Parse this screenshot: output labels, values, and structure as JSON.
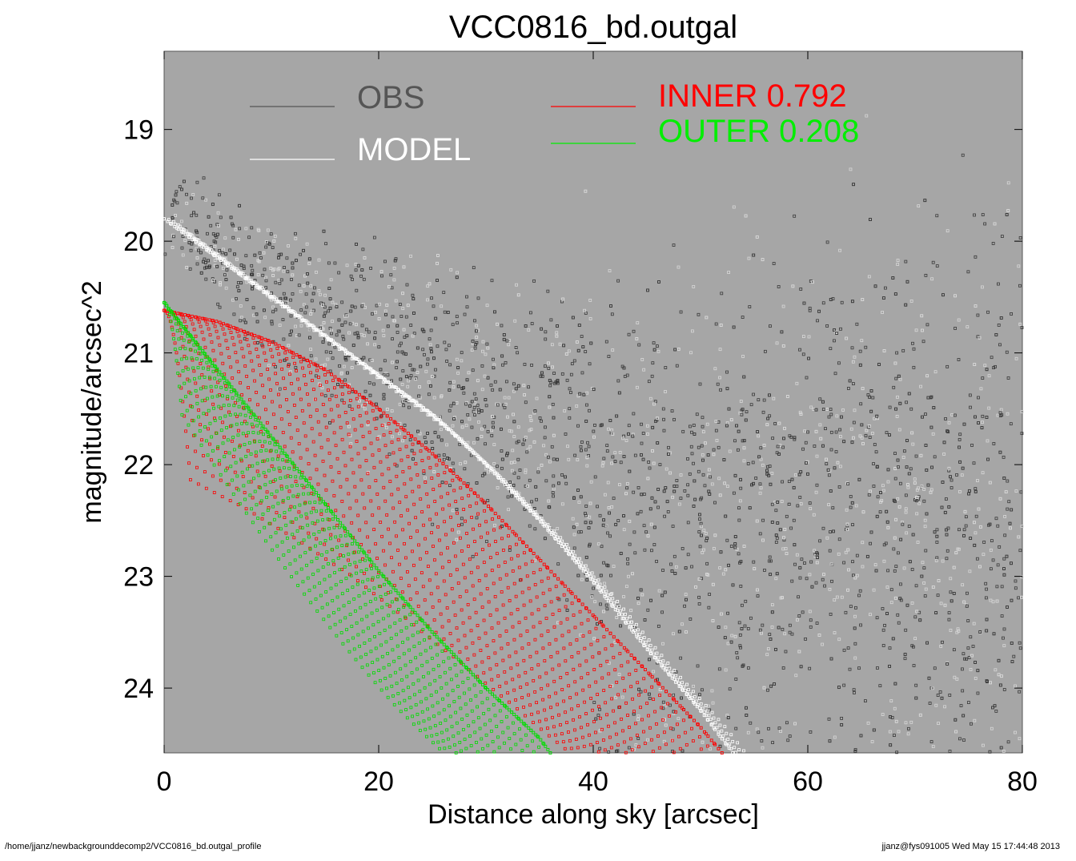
{
  "chart_data": {
    "type": "scatter",
    "title": "VCC0816_bd.outgal",
    "xlabel": "Distance along sky [arcsec]",
    "ylabel": "magnitude/arcsec^2",
    "xlim": [
      0,
      80
    ],
    "ylim": [
      24.58,
      18.3
    ],
    "y_inverted": true,
    "x_ticks": [
      0,
      20,
      40,
      60,
      80
    ],
    "y_ticks": [
      19,
      20,
      21,
      22,
      23,
      24
    ],
    "background": "#a6a6a6",
    "grid": false,
    "legend": [
      {
        "name": "OBS",
        "value": "",
        "color": "#555555",
        "position": "top-left"
      },
      {
        "name": "MODEL",
        "value": "",
        "color": "#ffffff",
        "position": "top-left"
      },
      {
        "name": "INNER",
        "value": "0.792",
        "color": "#ff0000",
        "position": "top-center"
      },
      {
        "name": "OUTER",
        "value": "0.208",
        "color": "#00ee00",
        "position": "top-center"
      }
    ],
    "series": [
      {
        "name": "OBS",
        "color": "#3a3a3a",
        "note": "scattered observed pixels, ~19.5-20 mag near center falling to ~21.5-22 background level beyond 45 arcsec",
        "x": [
          0,
          2,
          5,
          10,
          15,
          20,
          25,
          30,
          35,
          40,
          45,
          50,
          55,
          60,
          65,
          70,
          75,
          80
        ],
        "y": [
          19.8,
          19.85,
          20.1,
          20.45,
          20.75,
          21.0,
          21.25,
          21.5,
          21.7,
          21.85,
          21.9,
          21.95,
          22.0,
          22.0,
          22.0,
          22.0,
          22.0,
          22.0
        ]
      },
      {
        "name": "MODEL",
        "color": "#ffffff",
        "x": [
          0,
          5,
          10,
          15,
          20,
          25,
          30,
          35,
          40,
          45,
          50,
          53
        ],
        "y": [
          19.8,
          20.15,
          20.5,
          20.85,
          21.2,
          21.55,
          22.0,
          22.5,
          23.05,
          23.65,
          24.2,
          24.58
        ]
      },
      {
        "name": "INNER",
        "color": "#ff0000",
        "x": [
          0,
          5,
          10,
          15,
          20,
          25,
          30,
          35,
          40,
          45,
          50,
          52
        ],
        "y": [
          20.62,
          20.72,
          20.9,
          21.15,
          21.5,
          21.9,
          22.35,
          22.85,
          23.35,
          23.85,
          24.35,
          24.58
        ]
      },
      {
        "name": "OUTER",
        "color": "#00dd00",
        "x": [
          0,
          5,
          10,
          15,
          20,
          25,
          30,
          35,
          36
        ],
        "y": [
          20.55,
          21.15,
          21.75,
          22.35,
          22.95,
          23.5,
          24.0,
          24.45,
          24.58
        ]
      }
    ]
  },
  "footer": {
    "left": "/home/jjanz/newbackgrounddecomp2/VCC0816_bd.outgal_profile",
    "right": "jjanz@fys091005  Wed May 15 17:44:48 2013"
  }
}
